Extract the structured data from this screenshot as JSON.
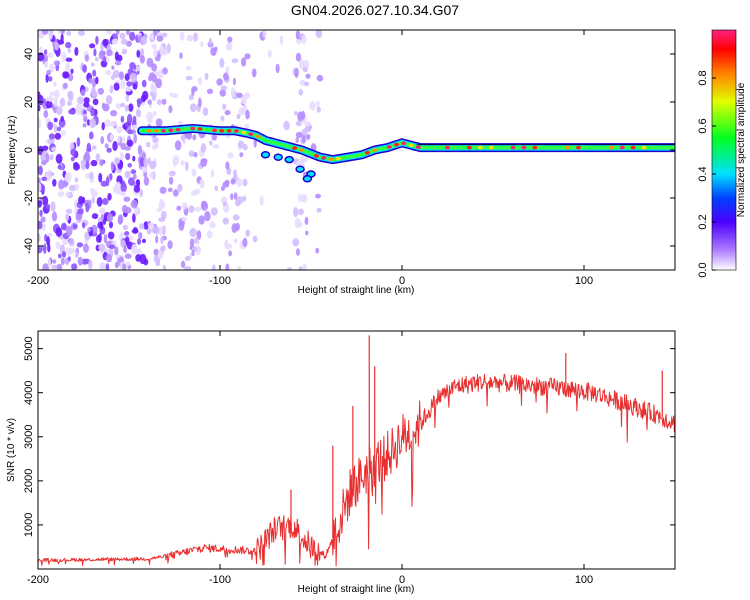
{
  "title": "GN04.2026.027.10.34.G07",
  "chart_data": [
    {
      "type": "heatmap",
      "xlabel": "Height of straight line (km)",
      "ylabel": "Frequency (Hz)",
      "xlim": [
        -200,
        150
      ],
      "ylim": [
        -50,
        50
      ],
      "xticks": [
        "-200",
        "-100",
        "0",
        "100"
      ],
      "xtick_values": [
        -200,
        -100,
        0,
        100
      ],
      "yticks": [
        "40",
        "20",
        "0",
        "-20",
        "-40"
      ],
      "ytick_values": [
        40,
        20,
        0,
        -20,
        -40
      ],
      "noise_x_range": [
        -200,
        -45
      ],
      "ridge": {
        "x": [
          -143,
          -130,
          -115,
          -100,
          -92,
          -85,
          -80,
          -75,
          -65,
          -55,
          -45,
          -38,
          -30,
          -22,
          -15,
          -8,
          0,
          5,
          10,
          30,
          60,
          90,
          120,
          150
        ],
        "y": [
          8,
          8,
          9,
          8,
          8,
          7,
          6,
          4,
          2,
          0,
          -3,
          -4,
          -3,
          -2,
          0,
          1,
          3,
          2,
          1,
          1,
          1,
          1,
          1,
          1
        ]
      },
      "colorbar": {
        "label": "Normalized spectral amplitude",
        "ticks": [
          "0.0",
          "0.2",
          "0.4",
          "0.6",
          "0.8"
        ],
        "tick_values": [
          0,
          0.2,
          0.4,
          0.6,
          0.8
        ],
        "range": [
          0,
          1
        ]
      }
    },
    {
      "type": "line",
      "xlabel": "Height of straight line (km)",
      "ylabel": "SNR (10 * v/v)",
      "xlim": [
        -200,
        150
      ],
      "ylim": [
        0,
        5400
      ],
      "xticks": [
        "-200",
        "-100",
        "0",
        "100"
      ],
      "xtick_values": [
        -200,
        -100,
        0,
        100
      ],
      "yticks": [
        "5000",
        "4000",
        "3000",
        "2000",
        "1000"
      ],
      "ytick_values": [
        5000,
        4000,
        3000,
        2000,
        1000
      ],
      "series": [
        {
          "name": "SNR",
          "color": "#e83030",
          "envelope_x": [
            -200,
            -140,
            -125,
            -110,
            -95,
            -80,
            -70,
            -60,
            -50,
            -42,
            -35,
            -28,
            -20,
            -15,
            -10,
            -5,
            0,
            5,
            10,
            15,
            20,
            30,
            45,
            60,
            75,
            90,
            105,
            120,
            140,
            150
          ],
          "envelope_y": [
            200,
            230,
            320,
            480,
            450,
            400,
            900,
            1000,
            500,
            300,
            1000,
            1800,
            2200,
            2400,
            2500,
            2700,
            3000,
            3100,
            3300,
            3600,
            3900,
            4150,
            4250,
            4200,
            4150,
            4100,
            4000,
            3800,
            3500,
            3300
          ],
          "spikes": [
            {
              "x": -18,
              "y": 5300
            },
            {
              "x": -15,
              "y": 4600
            },
            {
              "x": -27,
              "y": 3700
            },
            {
              "x": -38,
              "y": 2800
            },
            {
              "x": -61,
              "y": 1800
            },
            {
              "x": 90,
              "y": 4900
            },
            {
              "x": 143,
              "y": 4500
            }
          ]
        }
      ]
    }
  ]
}
